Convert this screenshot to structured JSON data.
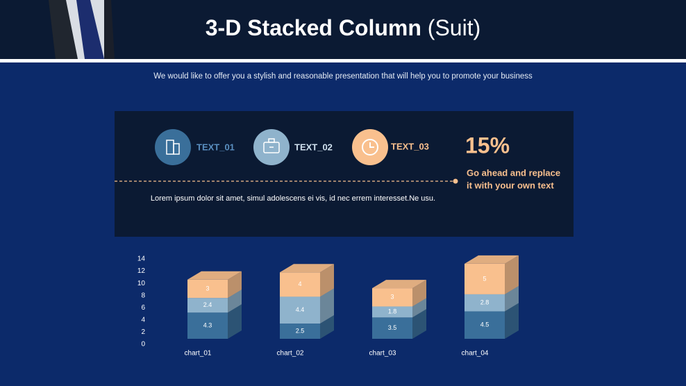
{
  "header": {
    "title": "3-D Stacked Column",
    "title_suffix": "(Suit)",
    "subtitle": "We would like to offer you a stylish and reasonable presentation that will help you to promote your business"
  },
  "panel": {
    "items": [
      "TEXT_01",
      "TEXT_02",
      "TEXT_03"
    ],
    "body": "Lorem ipsum dolor sit amet, simul adolescens ei vis, id nec errem interesset.Ne usu.",
    "stat": "15%",
    "stat_text": [
      "Go ahead and replace",
      "it with your own text"
    ]
  },
  "chart_data": {
    "type": "bar",
    "stacked": true,
    "categories": [
      "chart_01",
      "chart_02",
      "chart_03",
      "chart_04"
    ],
    "series": [
      {
        "color": "#3a6f9a",
        "values": [
          4.3,
          2.5,
          3.5,
          4.5
        ]
      },
      {
        "color": "#8fb3cc",
        "values": [
          2.4,
          4.4,
          1.8,
          2.8
        ]
      },
      {
        "color": "#f9c08e",
        "values": [
          3,
          4,
          3,
          5
        ]
      }
    ],
    "ylim": [
      0,
      14
    ],
    "yticks": [
      0,
      2,
      4,
      6,
      8,
      10,
      12,
      14
    ],
    "grid": false
  }
}
